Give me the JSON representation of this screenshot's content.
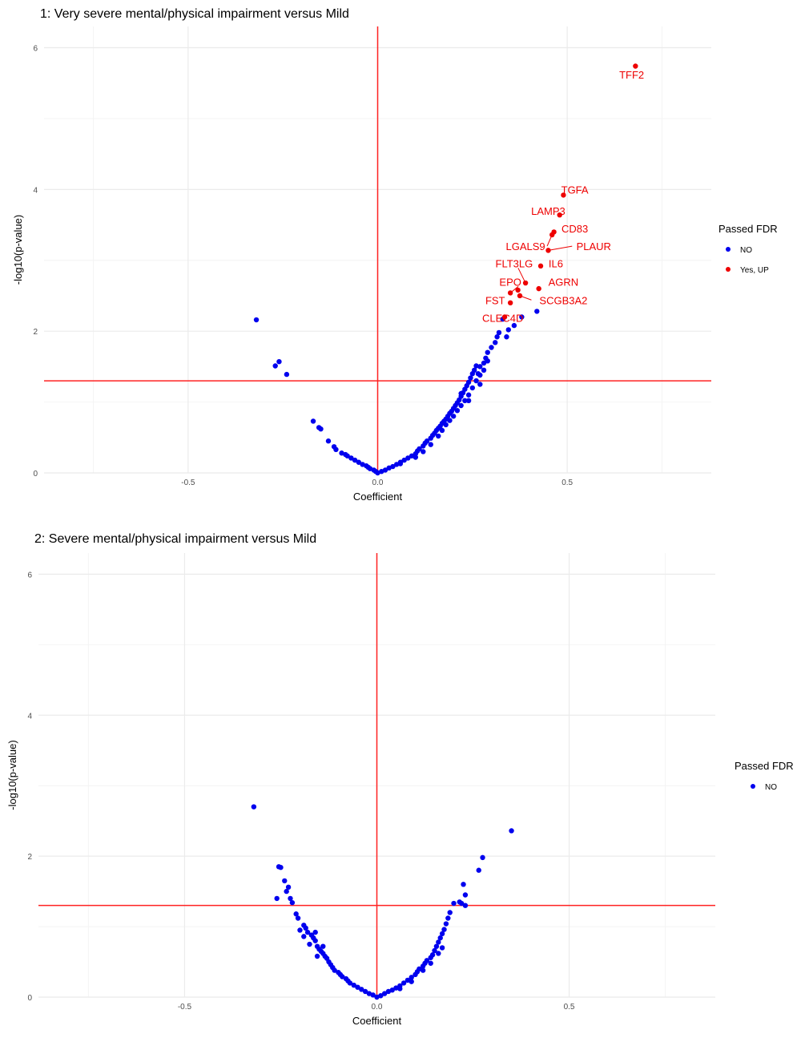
{
  "colors": {
    "no": "#0000ee",
    "yes": "#ee0000",
    "refline": "#ff2222",
    "grid": "#ebebeb",
    "grid_minor": "#f4f4f4",
    "axis_text": "#4d4d4d"
  },
  "chart_data": [
    {
      "type": "scatter",
      "title": "1: Very severe mental/physical impairment versus Mild",
      "xlabel": "Coefficient",
      "ylabel": "-log10(p-value)",
      "xlim": [
        -0.88,
        0.88
      ],
      "ylim": [
        0,
        6.3
      ],
      "xticks": [
        -0.5,
        0.0,
        0.5
      ],
      "xtick_labels": [
        "-0.5",
        "0.0",
        "0.5"
      ],
      "yticks": [
        0,
        2,
        4,
        6
      ],
      "ytick_labels": [
        "0",
        "2",
        "4",
        "6"
      ],
      "grid": true,
      "hline": 1.3,
      "vline": 0,
      "legend": {
        "title": "Passed FDR",
        "position": "right",
        "entries": [
          {
            "label": "NO",
            "color": "#0000ee"
          },
          {
            "label": "Yes, UP",
            "color": "#ee0000"
          }
        ]
      },
      "series": [
        {
          "name": "NO",
          "color": "#0000ee",
          "points": [
            [
              -0.32,
              2.16
            ],
            [
              -0.27,
              1.51
            ],
            [
              -0.26,
              1.57
            ],
            [
              -0.24,
              1.39
            ],
            [
              -0.17,
              0.73
            ],
            [
              -0.155,
              0.64
            ],
            [
              -0.15,
              0.62
            ],
            [
              -0.13,
              0.45
            ],
            [
              -0.115,
              0.37
            ],
            [
              -0.11,
              0.33
            ],
            [
              -0.095,
              0.28
            ],
            [
              -0.085,
              0.26
            ],
            [
              -0.08,
              0.24
            ],
            [
              -0.07,
              0.21
            ],
            [
              -0.06,
              0.18
            ],
            [
              -0.05,
              0.15
            ],
            [
              -0.04,
              0.12
            ],
            [
              -0.03,
              0.1
            ],
            [
              -0.025,
              0.08
            ],
            [
              -0.02,
              0.06
            ],
            [
              -0.01,
              0.04
            ],
            [
              -0.005,
              0.02
            ],
            [
              0.0,
              0.0
            ],
            [
              0.01,
              0.02
            ],
            [
              0.02,
              0.04
            ],
            [
              0.03,
              0.07
            ],
            [
              0.04,
              0.09
            ],
            [
              0.05,
              0.12
            ],
            [
              0.06,
              0.15
            ],
            [
              0.07,
              0.18
            ],
            [
              0.08,
              0.21
            ],
            [
              0.09,
              0.24
            ],
            [
              0.1,
              0.27
            ],
            [
              0.105,
              0.31
            ],
            [
              0.11,
              0.34
            ],
            [
              0.12,
              0.38
            ],
            [
              0.125,
              0.42
            ],
            [
              0.13,
              0.45
            ],
            [
              0.14,
              0.49
            ],
            [
              0.145,
              0.53
            ],
            [
              0.15,
              0.56
            ],
            [
              0.155,
              0.6
            ],
            [
              0.16,
              0.63
            ],
            [
              0.165,
              0.66
            ],
            [
              0.17,
              0.7
            ],
            [
              0.175,
              0.73
            ],
            [
              0.18,
              0.76
            ],
            [
              0.185,
              0.8
            ],
            [
              0.19,
              0.84
            ],
            [
              0.195,
              0.87
            ],
            [
              0.2,
              0.91
            ],
            [
              0.205,
              0.95
            ],
            [
              0.21,
              0.99
            ],
            [
              0.215,
              1.03
            ],
            [
              0.22,
              1.08
            ],
            [
              0.225,
              1.13
            ],
            [
              0.23,
              1.18
            ],
            [
              0.235,
              1.23
            ],
            [
              0.24,
              1.28
            ],
            [
              0.245,
              1.34
            ],
            [
              0.25,
              1.4
            ],
            [
              0.255,
              1.45
            ],
            [
              0.26,
              1.51
            ],
            [
              0.265,
              1.4
            ],
            [
              0.27,
              1.25
            ],
            [
              0.28,
              1.55
            ],
            [
              0.285,
              1.62
            ],
            [
              0.29,
              1.7
            ],
            [
              0.3,
              1.77
            ],
            [
              0.31,
              1.84
            ],
            [
              0.315,
              1.92
            ],
            [
              0.32,
              1.98
            ],
            [
              0.33,
              2.17
            ],
            [
              0.34,
              1.92
            ],
            [
              0.345,
              2.02
            ],
            [
              0.36,
              2.08
            ],
            [
              0.38,
              2.2
            ],
            [
              0.42,
              2.28
            ],
            [
              0.06,
              0.13
            ],
            [
              0.1,
              0.22
            ],
            [
              0.14,
              0.4
            ],
            [
              0.17,
              0.6
            ],
            [
              0.19,
              0.74
            ],
            [
              0.21,
              0.88
            ],
            [
              0.22,
              0.95
            ],
            [
              0.23,
              1.02
            ],
            [
              0.24,
              1.1
            ],
            [
              0.25,
              1.2
            ],
            [
              0.26,
              1.3
            ],
            [
              0.27,
              1.38
            ],
            [
              0.28,
              1.45
            ],
            [
              0.16,
              0.52
            ],
            [
              0.2,
              0.8
            ],
            [
              0.12,
              0.3
            ],
            [
              0.22,
              1.12
            ],
            [
              0.18,
              0.68
            ],
            [
              0.24,
              1.02
            ],
            [
              0.27,
              1.5
            ],
            [
              0.29,
              1.58
            ]
          ]
        },
        {
          "name": "Yes, UP",
          "color": "#ee0000",
          "points": [
            {
              "x": 0.68,
              "y": 5.74,
              "label": "TFF2"
            },
            {
              "x": 0.49,
              "y": 3.92,
              "label": "TGFA"
            },
            {
              "x": 0.48,
              "y": 3.64,
              "label": "LAMP3"
            },
            {
              "x": 0.465,
              "y": 3.4,
              "label": "CD83"
            },
            {
              "x": 0.46,
              "y": 3.36,
              "label": ""
            },
            {
              "x": 0.45,
              "y": 3.14,
              "label": "PLAUR"
            },
            {
              "x": 0.43,
              "y": 2.92,
              "label": "IL6"
            },
            {
              "x": 0.39,
              "y": 2.68,
              "label": "FLT3LG"
            },
            {
              "x": 0.425,
              "y": 2.6,
              "label": "AGRN"
            },
            {
              "x": 0.37,
              "y": 2.58,
              "label": "EPO"
            },
            {
              "x": 0.35,
              "y": 2.54,
              "label": ""
            },
            {
              "x": 0.375,
              "y": 2.5,
              "label": "SCGB3A2"
            },
            {
              "x": 0.35,
              "y": 2.4,
              "label": "FST"
            },
            {
              "x": 0.335,
              "y": 2.2,
              "label": "CLEC4D"
            }
          ]
        }
      ],
      "annotations": [
        {
          "text": "TFF2",
          "x": 0.67,
          "y": 5.62
        },
        {
          "text": "TGFA",
          "x": 0.52,
          "y": 4.0
        },
        {
          "text": "LAMP3",
          "x": 0.45,
          "y": 3.7
        },
        {
          "text": "CD83",
          "x": 0.52,
          "y": 3.45
        },
        {
          "text": "LGALS9",
          "x": 0.39,
          "y": 3.2
        },
        {
          "text": "PLAUR",
          "x": 0.57,
          "y": 3.2
        },
        {
          "text": "IL6",
          "x": 0.47,
          "y": 2.96
        },
        {
          "text": "FLT3LG",
          "x": 0.36,
          "y": 2.96
        },
        {
          "text": "AGRN",
          "x": 0.49,
          "y": 2.7
        },
        {
          "text": "EPO",
          "x": 0.35,
          "y": 2.7
        },
        {
          "text": "FST",
          "x": 0.31,
          "y": 2.44
        },
        {
          "text": "SCGB3A2",
          "x": 0.49,
          "y": 2.44
        },
        {
          "text": "CLEC4D",
          "x": 0.33,
          "y": 2.19
        }
      ]
    },
    {
      "type": "scatter",
      "title": "2: Severe mental/physical impairment versus Mild",
      "xlabel": "Coefficient",
      "ylabel": "-log10(p-value)",
      "xlim": [
        -0.88,
        0.88
      ],
      "ylim": [
        0,
        6.3
      ],
      "xticks": [
        -0.5,
        0.0,
        0.5
      ],
      "xtick_labels": [
        "-0.5",
        "0.0",
        "0.5"
      ],
      "yticks": [
        0,
        2,
        4,
        6
      ],
      "ytick_labels": [
        "0",
        "2",
        "4",
        "6"
      ],
      "grid": true,
      "hline": 1.3,
      "vline": 0,
      "legend": {
        "title": "Passed FDR",
        "position": "right",
        "entries": [
          {
            "label": "NO",
            "color": "#0000ee"
          }
        ]
      },
      "series": [
        {
          "name": "NO",
          "color": "#0000ee",
          "points": [
            [
              -0.32,
              2.7
            ],
            [
              -0.255,
              1.85
            ],
            [
              -0.25,
              1.84
            ],
            [
              -0.26,
              1.4
            ],
            [
              -0.24,
              1.65
            ],
            [
              -0.23,
              1.56
            ],
            [
              -0.235,
              1.5
            ],
            [
              -0.225,
              1.4
            ],
            [
              -0.22,
              1.34
            ],
            [
              -0.21,
              1.18
            ],
            [
              -0.205,
              1.12
            ],
            [
              -0.19,
              1.02
            ],
            [
              -0.185,
              0.98
            ],
            [
              -0.18,
              0.92
            ],
            [
              -0.17,
              0.88
            ],
            [
              -0.165,
              0.84
            ],
            [
              -0.16,
              0.8
            ],
            [
              -0.155,
              0.72
            ],
            [
              -0.15,
              0.68
            ],
            [
              -0.145,
              0.65
            ],
            [
              -0.14,
              0.62
            ],
            [
              -0.135,
              0.58
            ],
            [
              -0.13,
              0.55
            ],
            [
              -0.125,
              0.5
            ],
            [
              -0.12,
              0.46
            ],
            [
              -0.115,
              0.42
            ],
            [
              -0.11,
              0.38
            ],
            [
              -0.1,
              0.35
            ],
            [
              -0.095,
              0.32
            ],
            [
              -0.09,
              0.29
            ],
            [
              -0.08,
              0.26
            ],
            [
              -0.075,
              0.23
            ],
            [
              -0.07,
              0.2
            ],
            [
              -0.06,
              0.17
            ],
            [
              -0.05,
              0.14
            ],
            [
              -0.04,
              0.11
            ],
            [
              -0.03,
              0.08
            ],
            [
              -0.02,
              0.05
            ],
            [
              -0.01,
              0.03
            ],
            [
              0.0,
              0.0
            ],
            [
              -0.2,
              0.95
            ],
            [
              -0.175,
              0.75
            ],
            [
              -0.155,
              0.58
            ],
            [
              -0.14,
              0.72
            ],
            [
              -0.19,
              0.86
            ],
            [
              -0.16,
              0.92
            ],
            [
              0.01,
              0.02
            ],
            [
              0.02,
              0.05
            ],
            [
              0.03,
              0.08
            ],
            [
              0.04,
              0.1
            ],
            [
              0.05,
              0.13
            ],
            [
              0.06,
              0.16
            ],
            [
              0.07,
              0.2
            ],
            [
              0.08,
              0.24
            ],
            [
              0.09,
              0.28
            ],
            [
              0.1,
              0.32
            ],
            [
              0.105,
              0.36
            ],
            [
              0.11,
              0.4
            ],
            [
              0.12,
              0.44
            ],
            [
              0.125,
              0.48
            ],
            [
              0.13,
              0.52
            ],
            [
              0.14,
              0.56
            ],
            [
              0.145,
              0.6
            ],
            [
              0.15,
              0.66
            ],
            [
              0.155,
              0.72
            ],
            [
              0.16,
              0.78
            ],
            [
              0.165,
              0.84
            ],
            [
              0.17,
              0.9
            ],
            [
              0.175,
              0.96
            ],
            [
              0.18,
              1.04
            ],
            [
              0.185,
              1.12
            ],
            [
              0.19,
              1.2
            ],
            [
              0.2,
              1.33
            ],
            [
              0.215,
              1.35
            ],
            [
              0.225,
              1.6
            ],
            [
              0.22,
              1.33
            ],
            [
              0.23,
              1.45
            ],
            [
              0.23,
              1.3
            ],
            [
              0.265,
              1.8
            ],
            [
              0.275,
              1.98
            ],
            [
              0.35,
              2.36
            ],
            [
              0.06,
              0.12
            ],
            [
              0.09,
              0.22
            ],
            [
              0.12,
              0.38
            ],
            [
              0.14,
              0.48
            ],
            [
              0.16,
              0.62
            ],
            [
              0.17,
              0.7
            ]
          ]
        }
      ],
      "annotations": []
    }
  ]
}
